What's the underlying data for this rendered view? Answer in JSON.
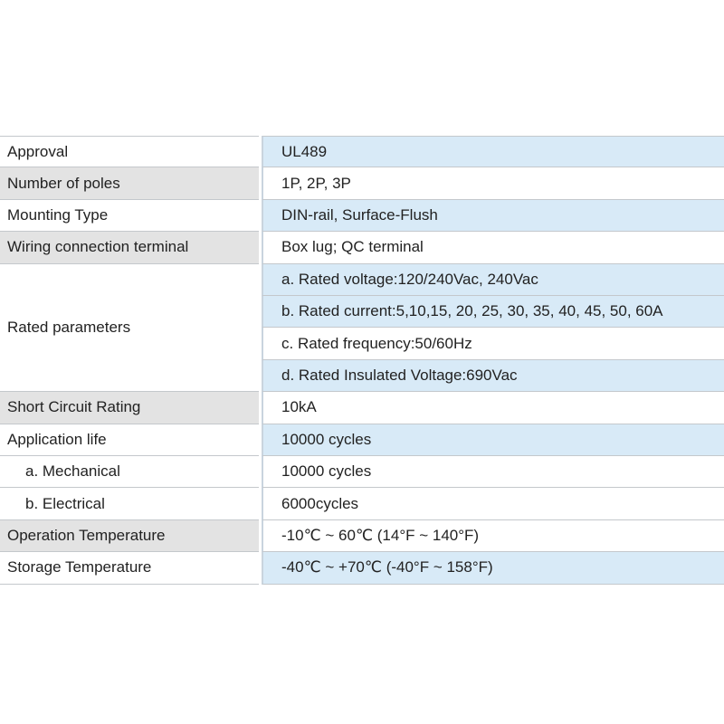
{
  "table": {
    "rows": [
      {
        "label": "Approval",
        "values": [
          "UL489"
        ]
      },
      {
        "label": "Number of poles",
        "values": [
          "1P, 2P, 3P"
        ]
      },
      {
        "label": "Mounting Type",
        "values": [
          "DIN-rail, Surface-Flush"
        ]
      },
      {
        "label": "Wiring connection terminal",
        "values": [
          "Box lug; QC terminal"
        ]
      },
      {
        "label": "Rated parameters",
        "values": [
          "a. Rated voltage:120/240Vac, 240Vac",
          "b. Rated current:5,10,15, 20, 25, 30, 35, 40, 45, 50, 60A",
          "c. Rated frequency:50/60Hz",
          "d. Rated Insulated Voltage:690Vac"
        ]
      },
      {
        "label": "Short Circuit Rating",
        "values": [
          "10kA"
        ]
      },
      {
        "label": "Application life",
        "values": [
          "10000 cycles"
        ]
      },
      {
        "label": "a. Mechanical",
        "values": [
          "10000 cycles"
        ]
      },
      {
        "label": "b. Electrical",
        "values": [
          "6000cycles"
        ]
      },
      {
        "label": "Operation Temperature",
        "values": [
          "-10℃ ~ 60℃ (14°F ~ 140°F)"
        ]
      },
      {
        "label": "Storage Temperature",
        "values": [
          "-40℃ ~ +70℃ (-40°F ~ 158°F)"
        ]
      }
    ]
  }
}
